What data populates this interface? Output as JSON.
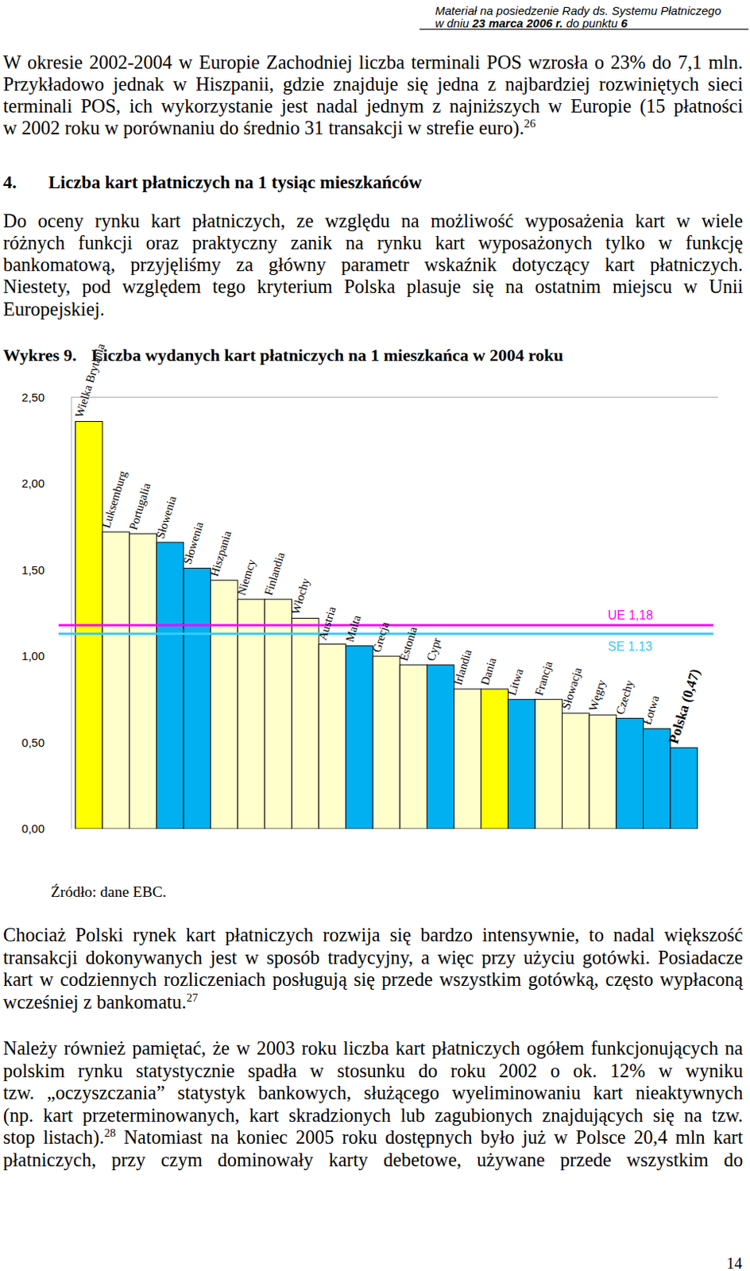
{
  "header": [
    [
      "Materiał na posiedzenie Rady ds. Systemu Płatniczego"
    ],
    [
      "w dniu ",
      {
        "bold": "23 marca 2006 r."
      },
      " do punktu ",
      {
        "bold": "6"
      }
    ]
  ],
  "paragraph_1": {
    "lines": [
      [
        "W okresie 2002-2004 w Europie Zachodniej liczba terminali POS wzrosła o 23% do 7,1 mln."
      ],
      [
        "Przykładowo jednak w Hiszpanii, gdzie znajduje się jedna z najbardziej rozwiniętych sieci"
      ],
      [
        "terminali POS, ich wykorzystanie jest nadal jednym z najniższych w Europie (15 płatności"
      ],
      [
        "w 2002 roku w porównaniu do średnio 31 transakcji w strefie euro).",
        {
          "sup": "26"
        }
      ]
    ]
  },
  "section": {
    "number": "4.",
    "title": "Liczba kart płatniczych na 1 tysiąc mieszkańców"
  },
  "paragraph_2": {
    "lines": [
      [
        "Do oceny rynku kart płatniczych, ze względu na możliwość wyposażenia kart w wiele"
      ],
      [
        "różnych funkcji oraz praktyczny zanik na rynku kart wyposażonych tylko w funkcję"
      ],
      [
        "bankomatową, przyjęliśmy za główny parametr wskaźnik dotyczący kart płatniczych."
      ],
      [
        "Niestety, pod względem tego kryterium Polska plasuje się na ostatnim miejscu w Unii"
      ],
      [
        "Europejskiej."
      ]
    ]
  },
  "figure": {
    "label": "Wykres 9.",
    "source": "Źródło: dane EBC."
  },
  "chart_data": {
    "type": "bar",
    "title": "Liczba wydanych kart płatniczych na 1 mieszkańca w 2004 roku",
    "categories": [
      "Wielka Brytania",
      "Luksemburg",
      "Portugalia",
      "Słowenia",
      "Słowenia",
      "Hiszpania",
      "Niemcy",
      "Finlandia",
      "Włochy",
      "Austria",
      "Malta",
      "Grecja",
      "Estonia",
      "Cypr",
      "Irlandia",
      "Dania",
      "Litwa",
      "Francja",
      "Słowacja",
      "Węgry",
      "Czechy",
      "Łotwa",
      "Polska (0,47)"
    ],
    "values": [
      2.36,
      1.72,
      1.71,
      1.66,
      1.51,
      1.44,
      1.33,
      1.33,
      1.22,
      1.07,
      1.06,
      1.0,
      0.95,
      0.95,
      0.81,
      0.81,
      0.75,
      0.75,
      0.67,
      0.66,
      0.64,
      0.58,
      0.47
    ],
    "colors": [
      "#ffff00",
      "#ffffcc",
      "#ffffcc",
      "#00b0f0",
      "#00b0f0",
      "#ffffcc",
      "#ffffcc",
      "#ffffcc",
      "#ffffcc",
      "#ffffcc",
      "#00b0f0",
      "#ffffcc",
      "#ffffcc",
      "#00b0f0",
      "#ffffcc",
      "#ffff00",
      "#00b0f0",
      "#ffffcc",
      "#ffffcc",
      "#ffffcc",
      "#00b0f0",
      "#00b0f0",
      "#00b0f0"
    ],
    "reference_lines": [
      {
        "label": "UE 1,18",
        "value": 1.18,
        "color": "#ff00ff"
      },
      {
        "label": "SE 1.13",
        "value": 1.13,
        "color": "#33ccff"
      }
    ],
    "ylim": [
      0,
      2.5
    ],
    "yticks": [
      {
        "value": 0,
        "label": "0,00"
      },
      {
        "value": 0.5,
        "label": "0,50"
      },
      {
        "value": 1,
        "label": "1,00"
      },
      {
        "value": 1.5,
        "label": "1,50"
      },
      {
        "value": 2,
        "label": "2,00"
      },
      {
        "value": 2.5,
        "label": "2,50"
      }
    ]
  },
  "paragraph_3": {
    "lines": [
      [
        "Chociaż Polski rynek kart płatniczych rozwija się bardzo intensywnie, to nadal większość"
      ],
      [
        "transakcji dokonywanych jest w sposób tradycyjny, a więc przy użyciu gotówki. Posiadacze"
      ],
      [
        "kart w codziennych rozliczeniach posługują się przede wszystkim gotówką, często wypłaconą"
      ],
      [
        "wcześniej z bankomatu.",
        {
          "sup": "27"
        }
      ]
    ]
  },
  "paragraph_4": {
    "lines": [
      [
        "Należy również pamiętać, że w 2003 roku liczba kart płatniczych ogółem funkcjonujących na"
      ],
      [
        "polskim rynku statystycznie spadła w stosunku do roku 2002 o ok. 12% w wyniku"
      ],
      [
        "tzw. „oczyszczania” statystyk bankowych, służącego wyeliminowaniu kart nieaktywnych"
      ],
      [
        "(np. kart przeterminowanych, kart skradzionych lub zagubionych znajdujących się na tzw."
      ],
      [
        "stop listach).",
        {
          "sup": "28"
        },
        " Natomiast na koniec 2005 roku dostępnych było już w Polsce 20,4 mln kart"
      ],
      [
        "płatniczych, przy czym dominowały karty debetowe, używane przede wszystkim do"
      ]
    ]
  },
  "page_number": "14"
}
